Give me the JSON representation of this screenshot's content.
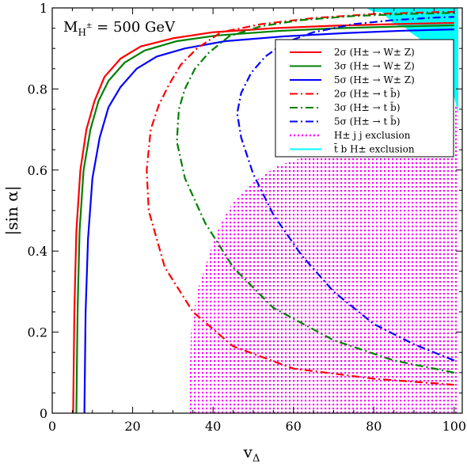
{
  "chart_data": {
    "type": "line",
    "annotation": "M_{H±} = 500 GeV",
    "annotation_parts": {
      "main": "M",
      "sub": "H",
      "sup": "±",
      "rest": " = 500 GeV"
    },
    "xlabel": "v_Δ",
    "xlabel_parts": {
      "main": "v",
      "sub": "Δ"
    },
    "ylabel": "|sin α|",
    "xlim": [
      0,
      102
    ],
    "ylim": [
      0,
      1
    ],
    "x_ticks": [
      0,
      20,
      40,
      60,
      80,
      100
    ],
    "y_ticks": [
      0,
      0.2,
      0.4,
      0.6,
      0.8,
      1
    ],
    "y_tick_labels": [
      "0",
      "0.2",
      "0.4",
      "0.6",
      "0.8",
      "1"
    ],
    "legend_position": "top-right",
    "series": [
      {
        "name": "2σ (H± → W± Z)",
        "color": "#ff0000",
        "style": "solid",
        "x": [
          5.2,
          5.5,
          6.0,
          7.0,
          8.5,
          10.5,
          13.0,
          17.0,
          22.0,
          30.0,
          40.0,
          55.0,
          70.0,
          85.0,
          100.0
        ],
        "y": [
          0.0,
          0.25,
          0.45,
          0.6,
          0.7,
          0.77,
          0.83,
          0.875,
          0.905,
          0.925,
          0.94,
          0.95,
          0.956,
          0.96,
          0.963
        ]
      },
      {
        "name": "3σ (H± → W± Z)",
        "color": "#008000",
        "style": "solid",
        "x": [
          6.0,
          6.3,
          6.8,
          7.8,
          9.5,
          11.5,
          14.0,
          18.0,
          23.0,
          31.0,
          41.0,
          56.0,
          71.0,
          86.0,
          100.0
        ],
        "y": [
          0.0,
          0.25,
          0.45,
          0.6,
          0.7,
          0.77,
          0.82,
          0.865,
          0.895,
          0.918,
          0.932,
          0.943,
          0.95,
          0.954,
          0.957
        ]
      },
      {
        "name": "5σ (H± → W± Z)",
        "color": "#0000ff",
        "style": "solid",
        "x": [
          8.0,
          8.3,
          8.9,
          10.0,
          11.8,
          14.0,
          17.0,
          21.0,
          26.0,
          33.0,
          43.0,
          58.0,
          73.0,
          88.0,
          100.0
        ],
        "y": [
          0.0,
          0.25,
          0.43,
          0.58,
          0.68,
          0.755,
          0.805,
          0.85,
          0.88,
          0.9,
          0.918,
          0.93,
          0.938,
          0.944,
          0.947
        ]
      },
      {
        "name": "2σ (H± → t b̄)",
        "color": "#ff0000",
        "style": "dashdot",
        "x": [
          100,
          80,
          60,
          45,
          35,
          28,
          24,
          23.5,
          24.5,
          26.5,
          29,
          32,
          36,
          42,
          52,
          65,
          80,
          90,
          97,
          100
        ],
        "y": [
          0.07,
          0.085,
          0.11,
          0.165,
          0.25,
          0.36,
          0.5,
          0.6,
          0.7,
          0.76,
          0.81,
          0.86,
          0.9,
          0.94,
          0.96,
          0.975,
          0.985,
          0.988,
          0.99,
          0.99
        ]
      },
      {
        "name": "3σ (H± → t b̄)",
        "color": "#008000",
        "style": "dashdot",
        "x": [
          100,
          85,
          70,
          55,
          45,
          38,
          33,
          31,
          31.5,
          33,
          35.5,
          39,
          44,
          52,
          62,
          75,
          88,
          97,
          100
        ],
        "y": [
          0.1,
          0.13,
          0.18,
          0.26,
          0.36,
          0.47,
          0.58,
          0.67,
          0.75,
          0.8,
          0.85,
          0.89,
          0.93,
          0.955,
          0.97,
          0.98,
          0.985,
          0.987,
          0.988
        ]
      },
      {
        "name": "5σ (H± → t b̄)",
        "color": "#0000ff",
        "style": "dashdot",
        "x": [
          100,
          90,
          80,
          70,
          62,
          55,
          50,
          47,
          46,
          47,
          49.5,
          53,
          58,
          65,
          75,
          85,
          95,
          100
        ],
        "y": [
          0.13,
          0.17,
          0.22,
          0.3,
          0.39,
          0.49,
          0.59,
          0.68,
          0.74,
          0.79,
          0.84,
          0.88,
          0.915,
          0.94,
          0.96,
          0.97,
          0.976,
          0.978
        ]
      }
    ],
    "exclusion_regions": [
      {
        "name": "H± j j exclusion",
        "color": "#ff00ff",
        "style": "dotted-fill",
        "boundary_x": [
          34,
          34.5,
          36,
          38,
          40,
          42,
          45,
          50,
          56,
          62,
          66,
          69,
          70,
          101,
          101,
          34
        ],
        "boundary_y": [
          0,
          0.2,
          0.3,
          0.36,
          0.42,
          0.47,
          0.52,
          0.57,
          0.61,
          0.63,
          0.66,
          0.72,
          0.76,
          0.76,
          0,
          0
        ]
      },
      {
        "name": "t̄ b H± exclusion",
        "color": "#00ffff",
        "style": "fill",
        "boundary_x": [
          78,
          80,
          82,
          84,
          85,
          88,
          89,
          92,
          93,
          96,
          97,
          99,
          99.5,
          101,
          101,
          78
        ],
        "boundary_y": [
          1.0,
          0.99,
          0.99,
          0.97,
          0.96,
          0.95,
          0.94,
          0.92,
          0.9,
          0.88,
          0.86,
          0.84,
          0.8,
          0.74,
          1.0,
          1.0
        ]
      }
    ],
    "legend": [
      {
        "label": "2σ (H± → W± Z)",
        "color": "#ff0000",
        "style": "solid"
      },
      {
        "label": "3σ (H± → W± Z)",
        "color": "#008000",
        "style": "solid"
      },
      {
        "label": "5σ (H± → W± Z)",
        "color": "#0000ff",
        "style": "solid"
      },
      {
        "label": "2σ (H± → t b̄)",
        "color": "#ff0000",
        "style": "dashdot"
      },
      {
        "label": "3σ (H± → t b̄)",
        "color": "#008000",
        "style": "dashdot"
      },
      {
        "label": "5σ (H± → t b̄)",
        "color": "#0000ff",
        "style": "dashdot"
      },
      {
        "label": "H± j j exclusion",
        "color": "#ff00ff",
        "style": "dotted"
      },
      {
        "label": "t̄ b H± exclusion",
        "color": "#00ffff",
        "style": "solid"
      }
    ]
  }
}
